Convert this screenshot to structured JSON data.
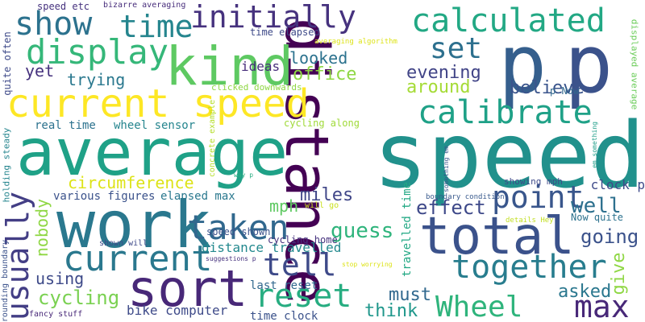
{
  "words": [
    {
      "text": "speed",
      "color": "#21918c"
    },
    {
      "text": "average",
      "color": "#1fa187"
    },
    {
      "text": "distance",
      "color": "#440154"
    },
    {
      "text": "work",
      "color": "#2a788e"
    },
    {
      "text": "kind",
      "color": "#5ec962"
    },
    {
      "text": "current speed",
      "color": "#fde725"
    },
    {
      "text": "total",
      "color": "#3b528b"
    },
    {
      "text": "sort",
      "color": "#482878"
    },
    {
      "text": "p",
      "color": "#355f8d"
    },
    {
      "text": "p",
      "color": "#3b528b"
    },
    {
      "text": "calculated",
      "color": "#22a884"
    },
    {
      "text": "initially",
      "color": "#46327e"
    },
    {
      "text": "show",
      "color": "#2c728e"
    },
    {
      "text": "time",
      "color": "#25858e"
    },
    {
      "text": "display",
      "color": "#35b779"
    },
    {
      "text": "set",
      "color": "#2d708e"
    },
    {
      "text": "calibrate",
      "color": "#1fa187"
    },
    {
      "text": "current",
      "color": "#2a788e"
    },
    {
      "text": "taken",
      "color": "#31688e"
    },
    {
      "text": "reset",
      "color": "#27ad81"
    },
    {
      "text": "tell",
      "color": "#3e4a89"
    },
    {
      "text": "together",
      "color": "#287d8e"
    },
    {
      "text": "point",
      "color": "#39568c"
    },
    {
      "text": "max",
      "color": "#482878"
    },
    {
      "text": "Wheel",
      "color": "#2fb47c"
    },
    {
      "text": "usually",
      "color": "#433e85"
    },
    {
      "text": "circumference",
      "color": "#dde318"
    },
    {
      "text": "cycling",
      "color": "#7ad151"
    },
    {
      "text": "miles",
      "color": "#404688"
    },
    {
      "text": "guess",
      "color": "#2fb47c"
    },
    {
      "text": "effect",
      "color": "#3e4989"
    },
    {
      "text": "well",
      "color": "#2d708e"
    },
    {
      "text": "going",
      "color": "#3b528b"
    },
    {
      "text": "give",
      "color": "#8fd744"
    },
    {
      "text": "asked",
      "color": "#2a778e"
    },
    {
      "text": "must",
      "color": "#31688e"
    },
    {
      "text": "think",
      "color": "#1f978b"
    },
    {
      "text": "using",
      "color": "#3e4a89"
    },
    {
      "text": "mph",
      "color": "#5ec962"
    },
    {
      "text": "nobody",
      "color": "#8fd744"
    },
    {
      "text": "office",
      "color": "#8fd744"
    },
    {
      "text": "looked",
      "color": "#2c728e"
    },
    {
      "text": "evening",
      "color": "#414487"
    },
    {
      "text": "around",
      "color": "#a5db36"
    },
    {
      "text": "believe",
      "color": "#3a548c"
    },
    {
      "text": "yet",
      "color": "#46327e"
    },
    {
      "text": "trying",
      "color": "#2a788e"
    },
    {
      "text": "ideas",
      "color": "#472d7b"
    },
    {
      "text": "clock p",
      "color": "#3e4a89"
    },
    {
      "text": "bike computer",
      "color": "#3e4a89"
    },
    {
      "text": "distance travelled",
      "color": "#23898e"
    },
    {
      "text": "various figures",
      "color": "#3b528b"
    },
    {
      "text": "elapsed max",
      "color": "#2a788e"
    },
    {
      "text": "real time",
      "color": "#2c728e"
    },
    {
      "text": "wheel sensor",
      "color": "#25858e"
    },
    {
      "text": "last reset",
      "color": "#31688e"
    },
    {
      "text": "speed shown",
      "color": "#3b528b"
    },
    {
      "text": "time clock",
      "color": "#3b528b"
    },
    {
      "text": "cycling home",
      "color": "#46327e"
    },
    {
      "text": "cycling along",
      "color": "#a0da39"
    },
    {
      "text": "showing mph",
      "color": "#3e4a89"
    },
    {
      "text": "Now quite",
      "color": "#2c728e"
    },
    {
      "text": "time elapsed",
      "color": "#3e4a89"
    },
    {
      "text": "speed etc",
      "color": "#46327e"
    },
    {
      "text": "bizarre averaging",
      "color": "#472d7b"
    },
    {
      "text": "quite often",
      "color": "#3e4a89"
    },
    {
      "text": "holding steady",
      "color": "#25858e"
    },
    {
      "text": "rounding boundary",
      "color": "#3b528b"
    },
    {
      "text": "fancy stuff",
      "color": "#482878"
    },
    {
      "text": "travelled time",
      "color": "#22a884"
    },
    {
      "text": "displayed average",
      "color": "#6ccd5a"
    },
    {
      "text": "p Now",
      "color": "#31688e"
    },
    {
      "text": "averaging algorithm",
      "color": "#dde318"
    },
    {
      "text": "clicked downwards",
      "color": "#8fd744"
    },
    {
      "text": "concrete example",
      "color": "#b5de2b"
    },
    {
      "text": "boundary condition",
      "color": "#38598c"
    },
    {
      "text": "something em",
      "color": "#39568c"
    },
    {
      "text": "em something",
      "color": "#1f9e89"
    },
    {
      "text": "details Hey",
      "color": "#c2df23"
    },
    {
      "text": "will go",
      "color": "#cae11f"
    },
    {
      "text": "way p",
      "color": "#27ad81"
    },
    {
      "text": "shown will",
      "color": "#3e4a89"
    },
    {
      "text": "suggestions p",
      "color": "#46327e"
    },
    {
      "text": "stop worrying",
      "color": "#dde318"
    }
  ]
}
